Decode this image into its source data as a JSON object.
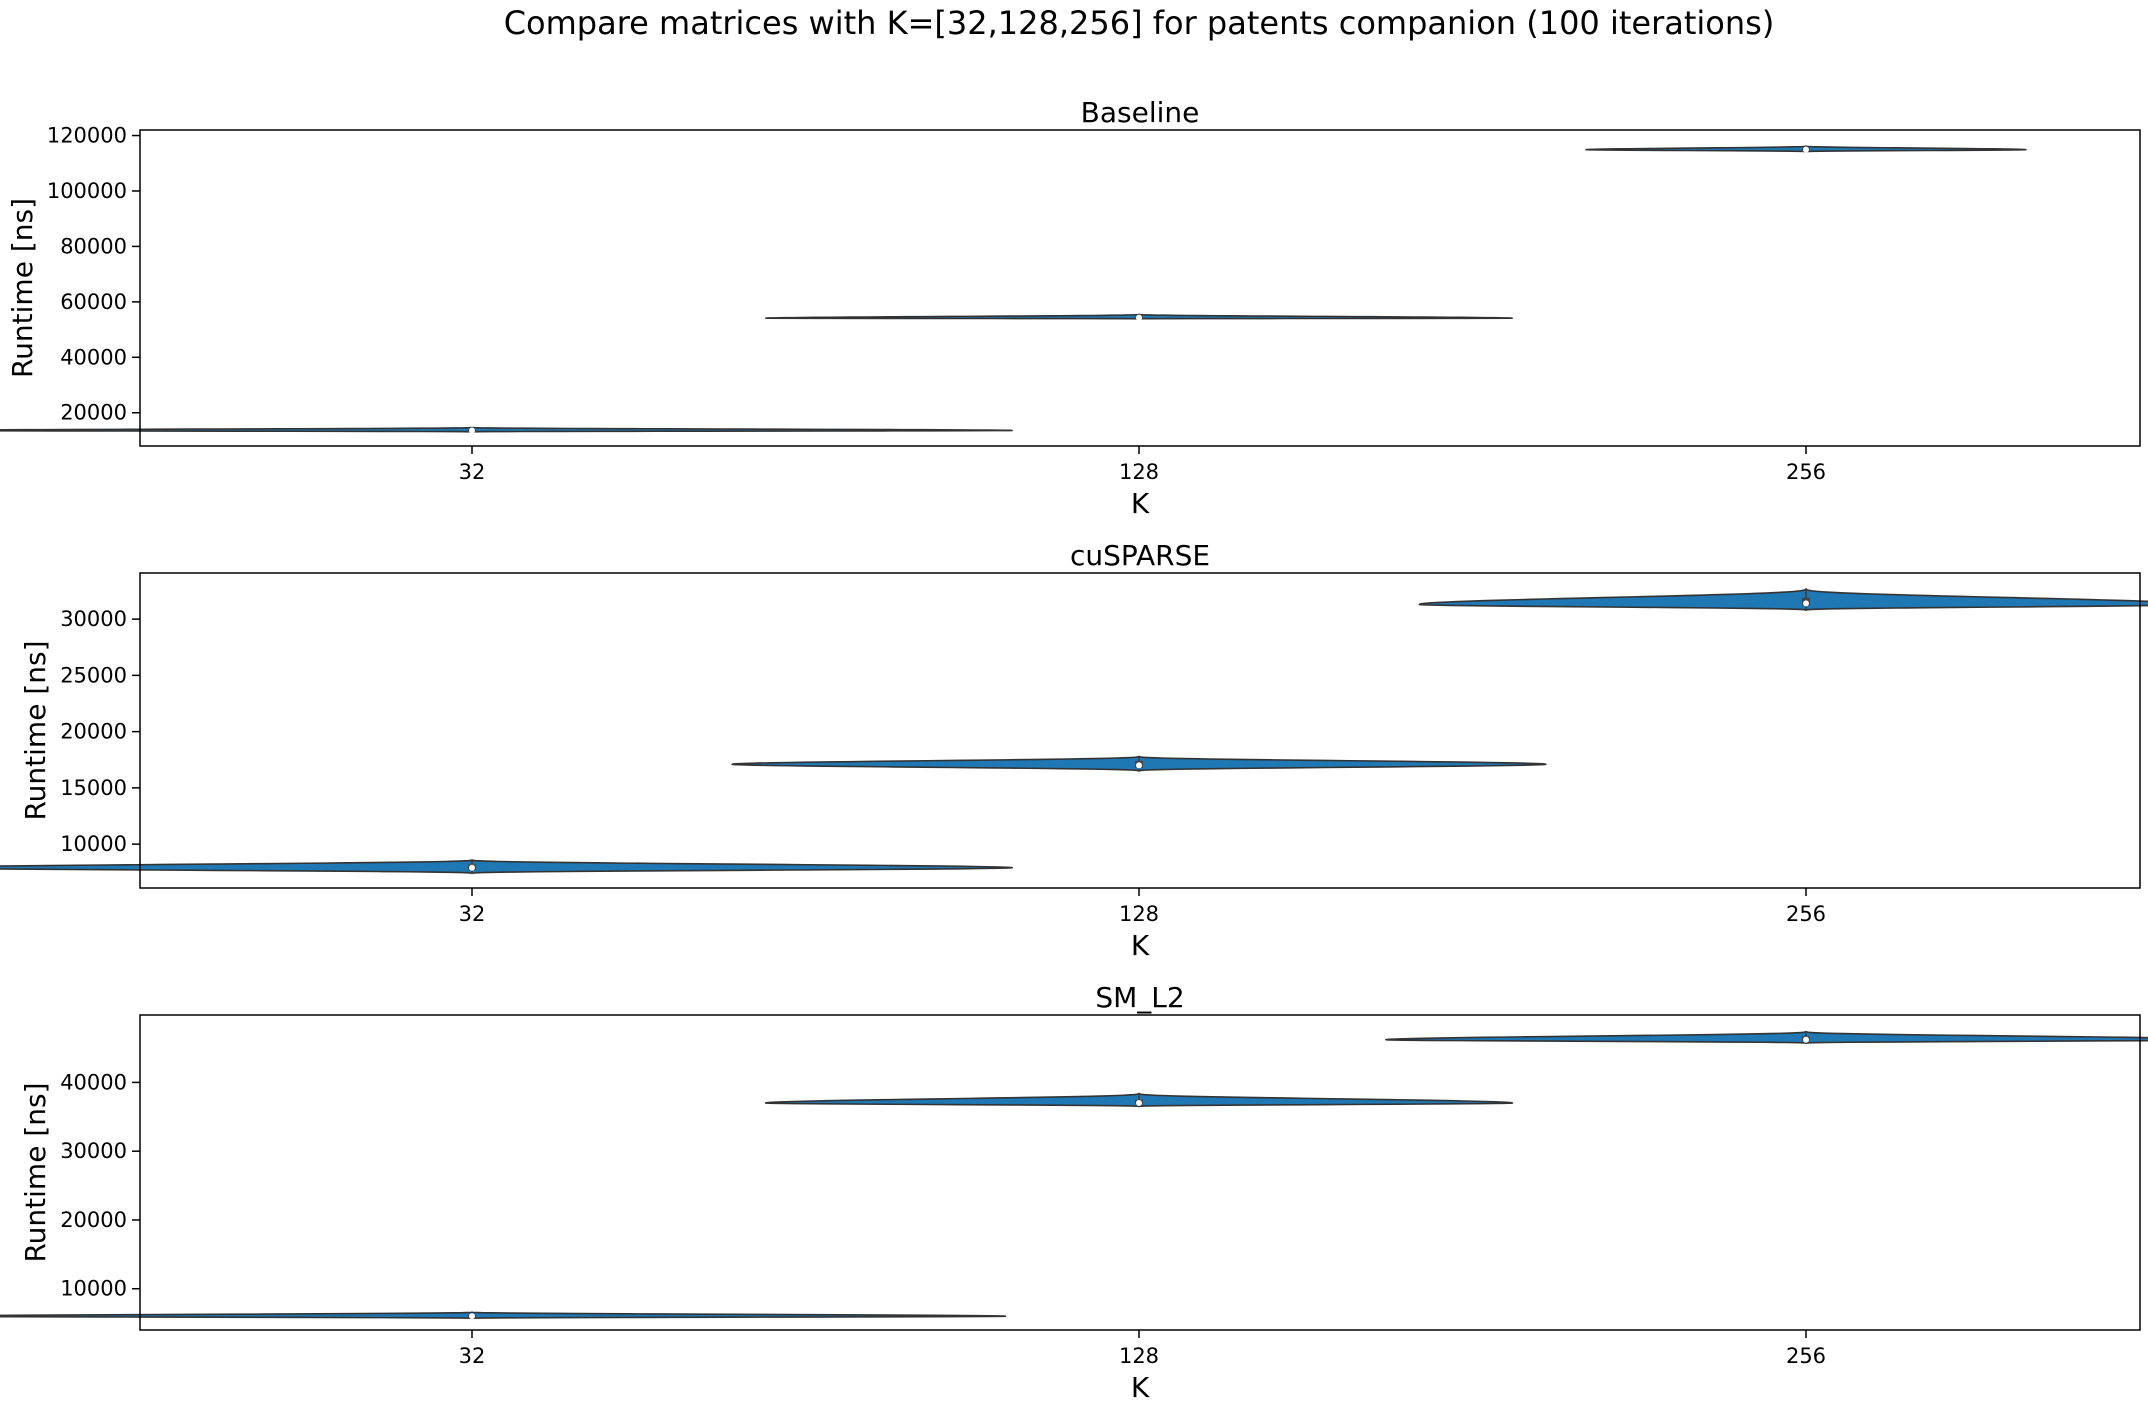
{
  "chart_data": {
    "suptitle": "Compare matrices with K=[32,128,256] for patents companion (100 iterations)",
    "type": "violin",
    "color": "#1f77b4",
    "subplots": [
      {
        "title": "Baseline",
        "xlabel": "K",
        "ylabel": "Runtime [ns]",
        "categories": [
          "32",
          "128",
          "256"
        ],
        "ylim": [
          8000,
          122000
        ],
        "yticks": [
          20000,
          40000,
          60000,
          80000,
          100000,
          120000
        ],
        "ytick_labels": [
          "20000",
          "40000",
          "60000",
          "80000",
          "100000",
          "120000"
        ],
        "violins": [
          {
            "category": "32",
            "median": 13600,
            "q1": 13400,
            "q3": 14000,
            "min": 13300,
            "max": 14400,
            "body_min": 13100,
            "body_max": 14700,
            "peak": 13600,
            "half_width": 0.81
          },
          {
            "category": "128",
            "median": 54300,
            "q1": 54100,
            "q3": 54800,
            "min": 54000,
            "max": 55200,
            "body_min": 53900,
            "body_max": 55500,
            "peak": 54100,
            "half_width": 0.56
          },
          {
            "category": "256",
            "median": 114900,
            "q1": 114600,
            "q3": 115500,
            "min": 114400,
            "max": 115800,
            "body_min": 114200,
            "body_max": 116200,
            "peak": 114900,
            "half_width": 0.33
          }
        ]
      },
      {
        "title": "cuSPARSE",
        "xlabel": "K",
        "ylabel": "Runtime [ns]",
        "categories": [
          "32",
          "128",
          "256"
        ],
        "ylim": [
          6100,
          34100
        ],
        "yticks": [
          10000,
          15000,
          20000,
          25000,
          30000
        ],
        "ytick_labels": [
          "10000",
          "15000",
          "20000",
          "25000",
          "30000"
        ],
        "violins": [
          {
            "category": "32",
            "median": 7900,
            "q1": 7700,
            "q3": 8200,
            "min": 7500,
            "max": 8500,
            "body_min": 7400,
            "body_max": 8600,
            "peak": 7900,
            "half_width": 0.81
          },
          {
            "category": "128",
            "median": 17000,
            "q1": 16800,
            "q3": 17400,
            "min": 16600,
            "max": 17700,
            "body_min": 16500,
            "body_max": 17800,
            "peak": 17100,
            "half_width": 0.61
          },
          {
            "category": "256",
            "median": 31400,
            "q1": 31200,
            "q3": 31900,
            "min": 30900,
            "max": 32600,
            "body_min": 30800,
            "body_max": 32700,
            "peak": 31300,
            "half_width": 0.58
          }
        ]
      },
      {
        "title": "SM_L2",
        "xlabel": "K",
        "ylabel": "Runtime [ns]",
        "categories": [
          "32",
          "128",
          "256"
        ],
        "ylim": [
          4000,
          49800
        ],
        "yticks": [
          10000,
          20000,
          30000,
          40000
        ],
        "ytick_labels": [
          "10000",
          "20000",
          "30000",
          "40000"
        ],
        "violins": [
          {
            "category": "32",
            "median": 6000,
            "q1": 5900,
            "q3": 6200,
            "min": 5800,
            "max": 6400,
            "body_min": 5700,
            "body_max": 6600,
            "peak": 6000,
            "half_width": 0.8
          },
          {
            "category": "128",
            "median": 37000,
            "q1": 36800,
            "q3": 37500,
            "min": 36600,
            "max": 38100,
            "body_min": 36500,
            "body_max": 38400,
            "peak": 37000,
            "half_width": 0.56
          },
          {
            "category": "256",
            "median": 46200,
            "q1": 46000,
            "q3": 46700,
            "min": 45800,
            "max": 47100,
            "body_min": 45700,
            "body_max": 47400,
            "peak": 46200,
            "half_width": 0.63
          }
        ]
      }
    ]
  }
}
